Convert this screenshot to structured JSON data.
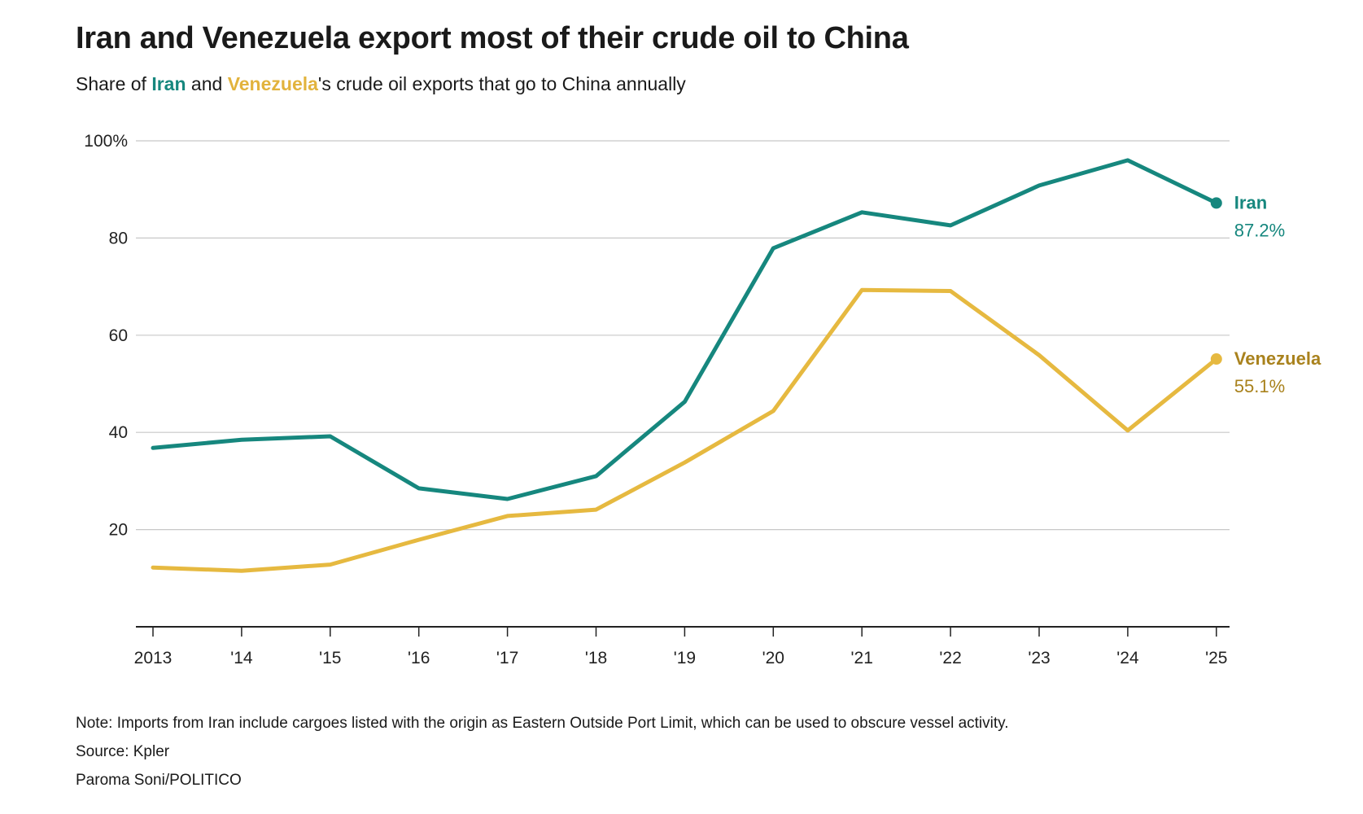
{
  "title": "Iran and Venezuela export most of their crude oil to China",
  "subtitle": {
    "prefix": "Share of ",
    "iran": "Iran",
    "middle": " and ",
    "venezuela": "Venezuela",
    "suffix": "'s crude oil exports that go to China annually"
  },
  "footer": {
    "note": "Note: Imports from Iran include cargoes listed with the origin as Eastern Outside Port Limit, which can be used to obscure vessel activity.",
    "source": "Source: Kpler",
    "credit": "Paroma Soni/POLITICO"
  },
  "colors": {
    "iran": "#16877e",
    "venezuela": "#e6b940",
    "venezuela_label": "#a9821d",
    "grid": "#c8c8c8",
    "axis": "#222222"
  },
  "chart_data": {
    "type": "line",
    "title": "Iran and Venezuela export most of their crude oil to China",
    "xlabel": "",
    "ylabel": "",
    "ylim": [
      0,
      100
    ],
    "yticks": [
      20,
      40,
      60,
      80,
      100
    ],
    "ytick_labels": [
      "20",
      "40",
      "60",
      "80",
      "100%"
    ],
    "categories": [
      "2013",
      "'14",
      "'15",
      "'16",
      "'17",
      "'18",
      "'19",
      "'20",
      "'21",
      "'22",
      "'23",
      "'24",
      "'25"
    ],
    "series": [
      {
        "name": "Iran",
        "end_label": "87.2%",
        "values": [
          36.8,
          38.5,
          39.2,
          28.5,
          26.3,
          31.0,
          46.3,
          77.9,
          85.3,
          82.6,
          90.8,
          96.0,
          87.2
        ]
      },
      {
        "name": "Venezuela",
        "end_label": "55.1%",
        "values": [
          12.2,
          11.5,
          12.8,
          17.9,
          22.8,
          24.1,
          33.8,
          44.4,
          69.3,
          69.1,
          55.9,
          40.4,
          55.1
        ]
      }
    ]
  }
}
